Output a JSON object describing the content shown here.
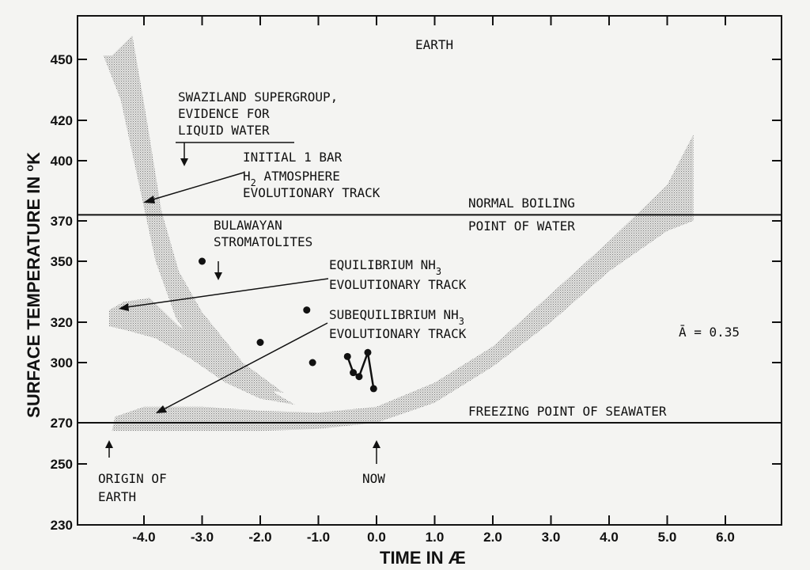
{
  "chart_data": {
    "type": "line",
    "title": "EARTH",
    "xlabel": "TIME IN Æ",
    "ylabel": "SURFACE TEMPERATURE IN °K",
    "xlim": [
      -4.9,
      7.0
    ],
    "ylim": [
      230,
      475
    ],
    "x_ticks": [
      -4.0,
      -3.0,
      -2.0,
      -1.0,
      0.0,
      1.0,
      2.0,
      3.0,
      4.0,
      5.0,
      6.0
    ],
    "x_tick_labels": [
      "-4.0",
      "-3.0",
      "-2.0",
      "-1.0",
      "0.0",
      "1.0",
      "2.0",
      "3.0",
      "4.0",
      "5.0",
      "6.0"
    ],
    "y_ticks": [
      230,
      250,
      270,
      300,
      320,
      350,
      370,
      400,
      420,
      450
    ],
    "y_tick_labels": [
      "230",
      "250",
      "270",
      "300",
      "320",
      "350",
      "370",
      "400",
      "420",
      "450"
    ],
    "albedo_label": "Ā = 0.35",
    "reference_lines": [
      {
        "y": 373,
        "label_line1": "NORMAL BOILING",
        "label_line2": "POINT OF WATER"
      },
      {
        "y": 270,
        "label_line1": "FREEZING POINT OF SEAWATER"
      }
    ],
    "bands": [
      {
        "name": "INITIAL 1 BAR H2 ATMOSPHERE EVOLUTIONARY TRACK",
        "upper": [
          [
            -4.55,
            452
          ],
          [
            -4.2,
            462
          ],
          [
            -3.95,
            420
          ],
          [
            -3.7,
            375
          ],
          [
            -3.4,
            345
          ],
          [
            -3.0,
            325
          ],
          [
            -2.3,
            300
          ],
          [
            -1.6,
            285
          ]
        ],
        "lower": [
          [
            -1.6,
            285
          ],
          [
            -2.3,
            288
          ],
          [
            -3.0,
            303
          ],
          [
            -3.45,
            322
          ],
          [
            -3.8,
            350
          ],
          [
            -4.1,
            390
          ],
          [
            -4.4,
            430
          ],
          [
            -4.7,
            452
          ]
        ]
      },
      {
        "name": "EQUILIBRIUM NH3 EVOLUTIONARY TRACK",
        "upper": [
          [
            -4.6,
            326
          ],
          [
            -4.35,
            330
          ],
          [
            -3.9,
            332
          ],
          [
            -3.4,
            318
          ],
          [
            -2.8,
            306
          ],
          [
            -2.2,
            296
          ],
          [
            -1.7,
            284
          ],
          [
            -1.4,
            279
          ]
        ],
        "lower": [
          [
            -1.4,
            279
          ],
          [
            -2.0,
            282
          ],
          [
            -2.6,
            290
          ],
          [
            -3.2,
            302
          ],
          [
            -3.8,
            312
          ],
          [
            -4.3,
            316
          ],
          [
            -4.6,
            318
          ]
        ]
      },
      {
        "name": "SUBEQUILIBRIUM NH3 EVOLUTIONARY TRACK",
        "upper": [
          [
            -4.5,
            273
          ],
          [
            -4.0,
            278
          ],
          [
            -3.0,
            278
          ],
          [
            -2.0,
            276
          ],
          [
            -1.0,
            275
          ],
          [
            0.0,
            278
          ],
          [
            1.0,
            290
          ],
          [
            2.0,
            308
          ],
          [
            3.0,
            334
          ],
          [
            4.0,
            360
          ],
          [
            5.0,
            388
          ],
          [
            5.45,
            413
          ],
          [
            5.45,
            370
          ]
        ],
        "lower": [
          [
            5.45,
            370
          ],
          [
            5.0,
            365
          ],
          [
            4.0,
            345
          ],
          [
            3.0,
            320
          ],
          [
            2.0,
            298
          ],
          [
            1.0,
            280
          ],
          [
            0.0,
            270
          ],
          [
            -1.0,
            267
          ],
          [
            -2.0,
            266
          ],
          [
            -3.0,
            266
          ],
          [
            -4.0,
            266
          ],
          [
            -4.55,
            266
          ]
        ]
      }
    ],
    "series": [
      {
        "marker": "dot",
        "points": [
          [
            -3.0,
            350
          ],
          [
            -2.0,
            310
          ],
          [
            -1.2,
            326
          ],
          [
            -1.1,
            300
          ]
        ]
      },
      {
        "marker": "dot-line",
        "points": [
          [
            -0.5,
            303
          ],
          [
            -0.4,
            295
          ],
          [
            -0.3,
            293
          ],
          [
            -0.15,
            305
          ],
          [
            -0.05,
            287
          ]
        ]
      }
    ],
    "annotations": [
      {
        "lines": [
          "SWAZILAND SUPERGROUP,",
          "EVIDENCE FOR",
          "LIQUID WATER"
        ],
        "arrow": "down",
        "target": [
          -3.3,
          398
        ]
      },
      {
        "lines": [
          "INITIAL 1 BAR",
          "H2 ATMOSPHERE",
          "EVOLUTIONARY TRACK"
        ],
        "arrow": "pointer",
        "target": [
          -3.85,
          380
        ]
      },
      {
        "lines": [
          "BULAWAYAN",
          "STROMATOLITES"
        ],
        "arrow": "down",
        "target": [
          -2.6,
          343
        ]
      },
      {
        "lines": [
          "EQUILIBRIUM NH3",
          "EVOLUTIONARY TRACK"
        ],
        "arrow": "pointer",
        "target": [
          -4.45,
          326
        ]
      },
      {
        "lines": [
          "SUBEQUILIBRIUM NH3",
          "EVOLUTIONARY TRACK"
        ],
        "arrow": "pointer",
        "target": [
          -4.1,
          272
        ]
      },
      {
        "lines": [
          "ORIGIN OF",
          "EARTH"
        ],
        "arrow": "up",
        "target": [
          -4.5,
          258
        ]
      },
      {
        "lines": [
          "NOW"
        ],
        "arrow": "up",
        "target": [
          0.0,
          258
        ]
      }
    ]
  }
}
